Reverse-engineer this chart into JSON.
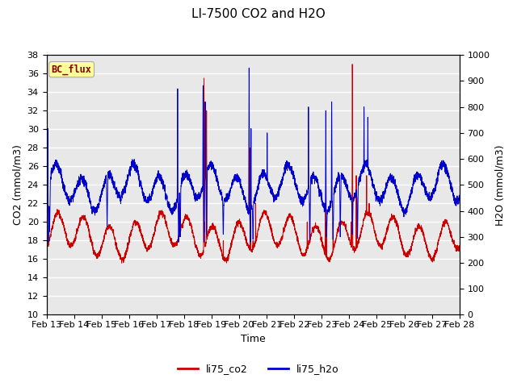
{
  "title": "LI-7500 CO2 and H2O",
  "xlabel": "Time",
  "ylabel_left": "CO2 (mmol/m3)",
  "ylabel_right": "H2O (mmol/m3)",
  "ylim_left": [
    10,
    38
  ],
  "ylim_right": [
    0,
    1000
  ],
  "yticks_left": [
    10,
    12,
    14,
    16,
    18,
    20,
    22,
    24,
    26,
    28,
    30,
    32,
    34,
    36,
    38
  ],
  "yticks_right": [
    0,
    100,
    200,
    300,
    400,
    500,
    600,
    700,
    800,
    900,
    1000
  ],
  "xtick_labels": [
    "Feb 13",
    "Feb 14",
    "Feb 15",
    "Feb 16",
    "Feb 17",
    "Feb 18",
    "Feb 19",
    "Feb 20",
    "Feb 21",
    "Feb 22",
    "Feb 23",
    "Feb 24",
    "Feb 25",
    "Feb 26",
    "Feb 27",
    "Feb 28"
  ],
  "legend_labels": [
    "li75_co2",
    "li75_h2o"
  ],
  "legend_colors": [
    "#cc0000",
    "#0000cc"
  ],
  "bc_flux_label": "BC_flux",
  "bc_flux_bg": "#ffff99",
  "bc_flux_border": "#aaaaaa",
  "bc_flux_text_color": "#880000",
  "line_color_co2": "#cc0000",
  "line_color_h2o": "#0000cc",
  "background_plot": "#e8e8e8",
  "background_fig": "#ffffff",
  "grid_color": "#ffffff",
  "title_fontsize": 11,
  "axis_label_fontsize": 9,
  "tick_fontsize": 8,
  "legend_fontsize": 9,
  "n_points": 4000
}
